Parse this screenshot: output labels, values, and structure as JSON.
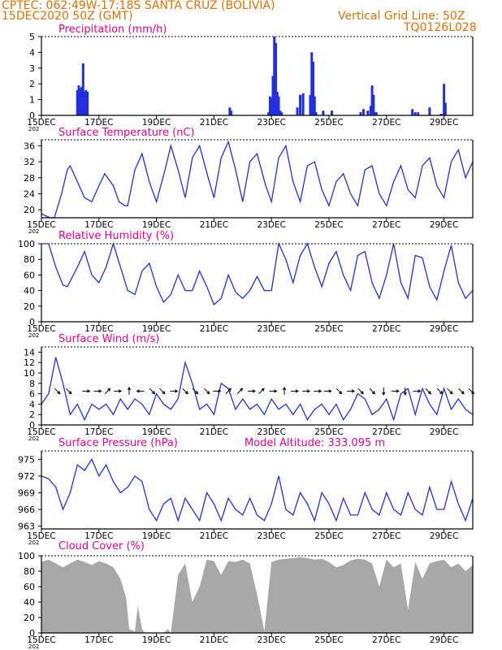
{
  "header": {
    "line1": "CPTEC:  062:49W-17:18S  SANTA CRUZ (BOLIVIA)",
    "line2": "15DEC2020 50Z (GMT)",
    "grid_note": "Vertical Grid Line: 50Z",
    "model_id": "TQ0126L028",
    "model_altitude": "Model Altitude: 333.095 m"
  },
  "colors": {
    "header": "#e07000",
    "title": "#e8008a",
    "line": "#2030e0",
    "bar": "#2030e0",
    "cloud": "#a8a8a8",
    "arrow": "#000000"
  },
  "x_axis": {
    "ticks": [
      "15DEC",
      "17DEC",
      "19DEC",
      "21DEC",
      "23DEC",
      "25DEC",
      "27DEC",
      "29DEC"
    ],
    "tick_positions_days": [
      0,
      2,
      4,
      6,
      8,
      10,
      12,
      14
    ],
    "range_days": [
      0,
      15
    ],
    "year_stub": "202"
  },
  "chart_data": [
    {
      "type": "bar",
      "title": "Precipitation (mm/h)",
      "ylim": [
        0,
        5
      ],
      "yticks": [
        0,
        1,
        2,
        3,
        4,
        5
      ],
      "x": [
        1.25,
        1.3,
        1.35,
        1.4,
        1.45,
        1.5,
        1.55,
        1.6,
        6.55,
        6.6,
        7.9,
        7.95,
        8.0,
        8.05,
        8.1,
        8.15,
        8.2,
        8.25,
        8.3,
        8.35,
        8.9,
        9.0,
        9.1,
        9.35,
        9.4,
        9.45,
        9.5,
        9.55,
        9.8,
        10.1,
        11.1,
        11.2,
        11.35,
        11.45,
        11.5,
        11.55,
        11.6,
        11.65,
        12.9,
        13.0,
        13.1,
        13.5,
        13.9,
        14.0,
        14.05
      ],
      "values": [
        1.6,
        1.9,
        1.7,
        1.8,
        3.3,
        1.5,
        1.6,
        1.5,
        0.5,
        0.3,
        0.2,
        1.2,
        1.1,
        2.5,
        5.0,
        4.6,
        1.5,
        1.2,
        0.3,
        0.2,
        0.5,
        1.3,
        1.4,
        1.3,
        4.0,
        3.4,
        1.2,
        0.2,
        0.3,
        0.3,
        0.2,
        0.4,
        0.3,
        0.6,
        1.9,
        1.3,
        0.2,
        0.2,
        0.4,
        0.2,
        0.2,
        0.5,
        0.1,
        2.0,
        0.8
      ]
    },
    {
      "type": "line",
      "title": "Surface Temperature (nC)",
      "ylim": [
        18,
        37.5
      ],
      "yticks": [
        20,
        24,
        28,
        32,
        36
      ],
      "x": [
        0,
        0.3,
        0.45,
        0.7,
        0.9,
        1.0,
        1.25,
        1.5,
        1.75,
        2.0,
        2.2,
        2.5,
        2.7,
        2.9,
        3.0,
        3.25,
        3.5,
        3.75,
        4.0,
        4.3,
        4.5,
        4.75,
        5.0,
        5.25,
        5.5,
        5.8,
        6.0,
        6.25,
        6.5,
        6.75,
        7.0,
        7.25,
        7.5,
        7.8,
        8.0,
        8.25,
        8.5,
        8.75,
        9.0,
        9.25,
        9.5,
        9.75,
        10.0,
        10.25,
        10.5,
        10.75,
        11.0,
        11.25,
        11.5,
        11.75,
        12.0,
        12.25,
        12.5,
        12.75,
        13.0,
        13.25,
        13.5,
        13.75,
        14.0,
        14.25,
        14.5,
        14.75,
        15.0
      ],
      "values": [
        19,
        18,
        18,
        24,
        30,
        31,
        27,
        23,
        22,
        26,
        29,
        26,
        22,
        21,
        21,
        30,
        34,
        27,
        22,
        30,
        36,
        30,
        23,
        33,
        36,
        28,
        23,
        33,
        37,
        30,
        22,
        32,
        34,
        26,
        22,
        33,
        36,
        27,
        22,
        31,
        32,
        25,
        21,
        27,
        29,
        24,
        21,
        30,
        31,
        24,
        21,
        27,
        31,
        25,
        23,
        31,
        33,
        26,
        23,
        32,
        35,
        28,
        32
      ]
    },
    {
      "type": "line",
      "title": "Relative Humidity (%)",
      "ylim": [
        0,
        100
      ],
      "yticks": [
        0,
        20,
        40,
        60,
        80,
        100
      ],
      "x": [
        0,
        0.25,
        0.5,
        0.75,
        0.9,
        1.25,
        1.5,
        1.75,
        2.0,
        2.25,
        2.5,
        2.75,
        3.0,
        3.25,
        3.5,
        3.75,
        4.0,
        4.25,
        4.5,
        4.75,
        5.0,
        5.25,
        5.5,
        5.75,
        6.0,
        6.25,
        6.5,
        6.75,
        7.0,
        7.25,
        7.5,
        7.75,
        8.0,
        8.25,
        8.5,
        8.75,
        9.0,
        9.25,
        9.5,
        9.75,
        10.0,
        10.25,
        10.5,
        10.75,
        11.0,
        11.25,
        11.5,
        11.75,
        12.0,
        12.25,
        12.5,
        12.75,
        13.0,
        13.25,
        13.5,
        13.75,
        14.0,
        14.25,
        14.5,
        14.75,
        15.0
      ],
      "values": [
        100,
        100,
        70,
        47,
        45,
        70,
        90,
        60,
        50,
        70,
        100,
        70,
        40,
        35,
        65,
        75,
        45,
        25,
        35,
        60,
        40,
        40,
        65,
        45,
        22,
        30,
        60,
        38,
        30,
        40,
        58,
        40,
        40,
        100,
        80,
        50,
        85,
        100,
        70,
        45,
        75,
        90,
        60,
        40,
        85,
        90,
        50,
        30,
        60,
        100,
        50,
        30,
        85,
        82,
        45,
        28,
        65,
        98,
        50,
        30,
        40
      ]
    },
    {
      "type": "line",
      "title": "Surface Wind (m/s)",
      "ylim": [
        0,
        15
      ],
      "yticks": [
        0,
        2,
        4,
        6,
        8,
        10,
        12,
        14
      ],
      "x": [
        0,
        0.25,
        0.5,
        0.75,
        1.0,
        1.25,
        1.5,
        1.75,
        2.0,
        2.25,
        2.5,
        2.75,
        3.0,
        3.25,
        3.5,
        3.75,
        4.0,
        4.25,
        4.5,
        4.75,
        5.0,
        5.25,
        5.5,
        5.75,
        6.0,
        6.25,
        6.5,
        6.75,
        7.0,
        7.25,
        7.5,
        7.75,
        8.0,
        8.25,
        8.5,
        8.75,
        9.0,
        9.25,
        9.5,
        9.75,
        10.0,
        10.25,
        10.5,
        10.75,
        11.0,
        11.25,
        11.5,
        11.75,
        12.0,
        12.25,
        12.5,
        12.75,
        13.0,
        13.25,
        13.5,
        13.75,
        14.0,
        14.25,
        14.5,
        14.75,
        15.0
      ],
      "values": [
        4,
        6,
        13,
        8,
        2,
        4,
        1,
        4,
        3,
        4,
        2,
        5,
        3,
        5,
        4,
        2,
        6,
        4,
        3,
        5,
        12,
        8,
        3,
        4,
        2,
        8,
        7,
        3,
        5,
        3,
        4,
        2,
        5,
        3,
        4,
        2,
        4,
        1,
        3,
        4,
        2,
        4,
        1,
        3,
        6,
        5,
        2,
        3,
        5,
        1,
        6,
        7,
        2,
        7,
        4,
        2,
        7,
        3,
        5,
        3,
        2
      ],
      "arrows_x": [
        0.55,
        0.95,
        1.55,
        1.95,
        2.3,
        2.65,
        3.05,
        3.45,
        3.85,
        4.2,
        4.6,
        5.0,
        5.35,
        5.75,
        6.1,
        6.5,
        6.9,
        7.3,
        7.65,
        8.05,
        8.45,
        8.8,
        9.2,
        9.6,
        9.95,
        10.35,
        10.75,
        11.1,
        11.5,
        11.9,
        12.3,
        12.65,
        13.05,
        13.45,
        13.85,
        14.2,
        14.6,
        14.95
      ],
      "arrows_u": [
        1,
        1,
        1,
        1,
        1,
        1,
        0,
        -1,
        1,
        1,
        1,
        1,
        1,
        1,
        1,
        1,
        1,
        1,
        1,
        1,
        0,
        1,
        1,
        1,
        1,
        1,
        1,
        1,
        1,
        0,
        1,
        0,
        1,
        1,
        1,
        1,
        1,
        1
      ],
      "arrows_v": [
        -1,
        -1,
        0,
        0,
        1,
        0,
        1,
        0,
        -1,
        -1,
        0,
        -1,
        -1,
        -1,
        0,
        1,
        1,
        0,
        1,
        0,
        1,
        0,
        0,
        0,
        0,
        -1,
        0,
        -1,
        -1,
        -1,
        0,
        -1,
        0,
        -1,
        -1,
        -1,
        -1,
        -1
      ]
    },
    {
      "type": "line",
      "title": "Surface Pressure (hPa)",
      "ylim": [
        962.5,
        976.5
      ],
      "yticks": [
        963,
        966,
        969,
        972,
        975
      ],
      "x": [
        0,
        0.25,
        0.5,
        0.75,
        1.0,
        1.25,
        1.5,
        1.75,
        2.0,
        2.25,
        2.5,
        2.75,
        3.0,
        3.25,
        3.5,
        3.75,
        4.0,
        4.25,
        4.5,
        4.75,
        5.0,
        5.25,
        5.5,
        5.75,
        6.0,
        6.25,
        6.5,
        6.75,
        7.0,
        7.25,
        7.5,
        7.75,
        8.0,
        8.25,
        8.5,
        8.75,
        9.0,
        9.25,
        9.5,
        9.75,
        10.0,
        10.25,
        10.5,
        10.75,
        11.0,
        11.25,
        11.5,
        11.75,
        12.0,
        12.25,
        12.5,
        12.75,
        13.0,
        13.25,
        13.5,
        13.75,
        14.0,
        14.25,
        14.5,
        14.75,
        15.0
      ],
      "values": [
        972,
        971.5,
        970,
        966,
        969,
        974,
        973,
        975,
        972,
        974,
        971,
        969,
        970,
        972,
        971,
        966,
        964,
        967,
        968,
        964,
        968,
        966,
        964,
        969,
        967,
        964,
        968,
        966,
        965,
        968,
        965,
        964,
        967,
        972,
        966,
        965,
        969,
        967,
        964,
        969,
        967,
        964,
        968,
        965,
        965,
        969,
        966,
        965,
        969,
        966,
        965,
        969,
        966,
        965,
        970,
        966,
        966,
        971,
        967,
        964,
        968
      ]
    },
    {
      "type": "area",
      "title": "Cloud Cover (%)",
      "ylim": [
        0,
        100
      ],
      "yticks": [
        0,
        20,
        40,
        60,
        80,
        100
      ],
      "x": [
        0,
        0.25,
        0.5,
        0.75,
        1.0,
        1.25,
        1.5,
        1.75,
        2.0,
        2.25,
        2.5,
        2.75,
        2.95,
        3.05,
        3.25,
        3.35,
        3.5,
        3.6,
        3.75,
        4.0,
        4.25,
        4.4,
        4.5,
        4.75,
        5.0,
        5.25,
        5.5,
        5.75,
        6.0,
        6.25,
        6.5,
        6.75,
        7.0,
        7.25,
        7.5,
        7.75,
        8.0,
        8.25,
        8.5,
        8.75,
        9.0,
        9.25,
        9.5,
        9.75,
        10.0,
        10.25,
        10.5,
        10.75,
        11.0,
        11.25,
        11.5,
        11.75,
        12.0,
        12.25,
        12.5,
        12.75,
        13.0,
        13.25,
        13.5,
        13.75,
        14.0,
        14.25,
        14.5,
        14.75,
        15.0
      ],
      "values": [
        92,
        95,
        90,
        85,
        90,
        95,
        92,
        88,
        93,
        90,
        85,
        70,
        45,
        5,
        2,
        35,
        5,
        0,
        0,
        0,
        0,
        5,
        0,
        75,
        90,
        40,
        60,
        95,
        93,
        75,
        93,
        92,
        95,
        90,
        50,
        2,
        92,
        95,
        96,
        97,
        98,
        97,
        95,
        96,
        92,
        85,
        88,
        94,
        96,
        95,
        90,
        60,
        95,
        85,
        90,
        30,
        92,
        70,
        90,
        93,
        95,
        85,
        90,
        80,
        88
      ]
    }
  ],
  "panels": [
    {
      "title": "Precipitation (mm/h)"
    },
    {
      "title": "Surface Temperature (nC)"
    },
    {
      "title": "Relative Humidity (%)"
    },
    {
      "title": "Surface Wind (m/s)"
    },
    {
      "title": "Surface Pressure (hPa)"
    },
    {
      "title": "Cloud Cover (%)"
    }
  ]
}
